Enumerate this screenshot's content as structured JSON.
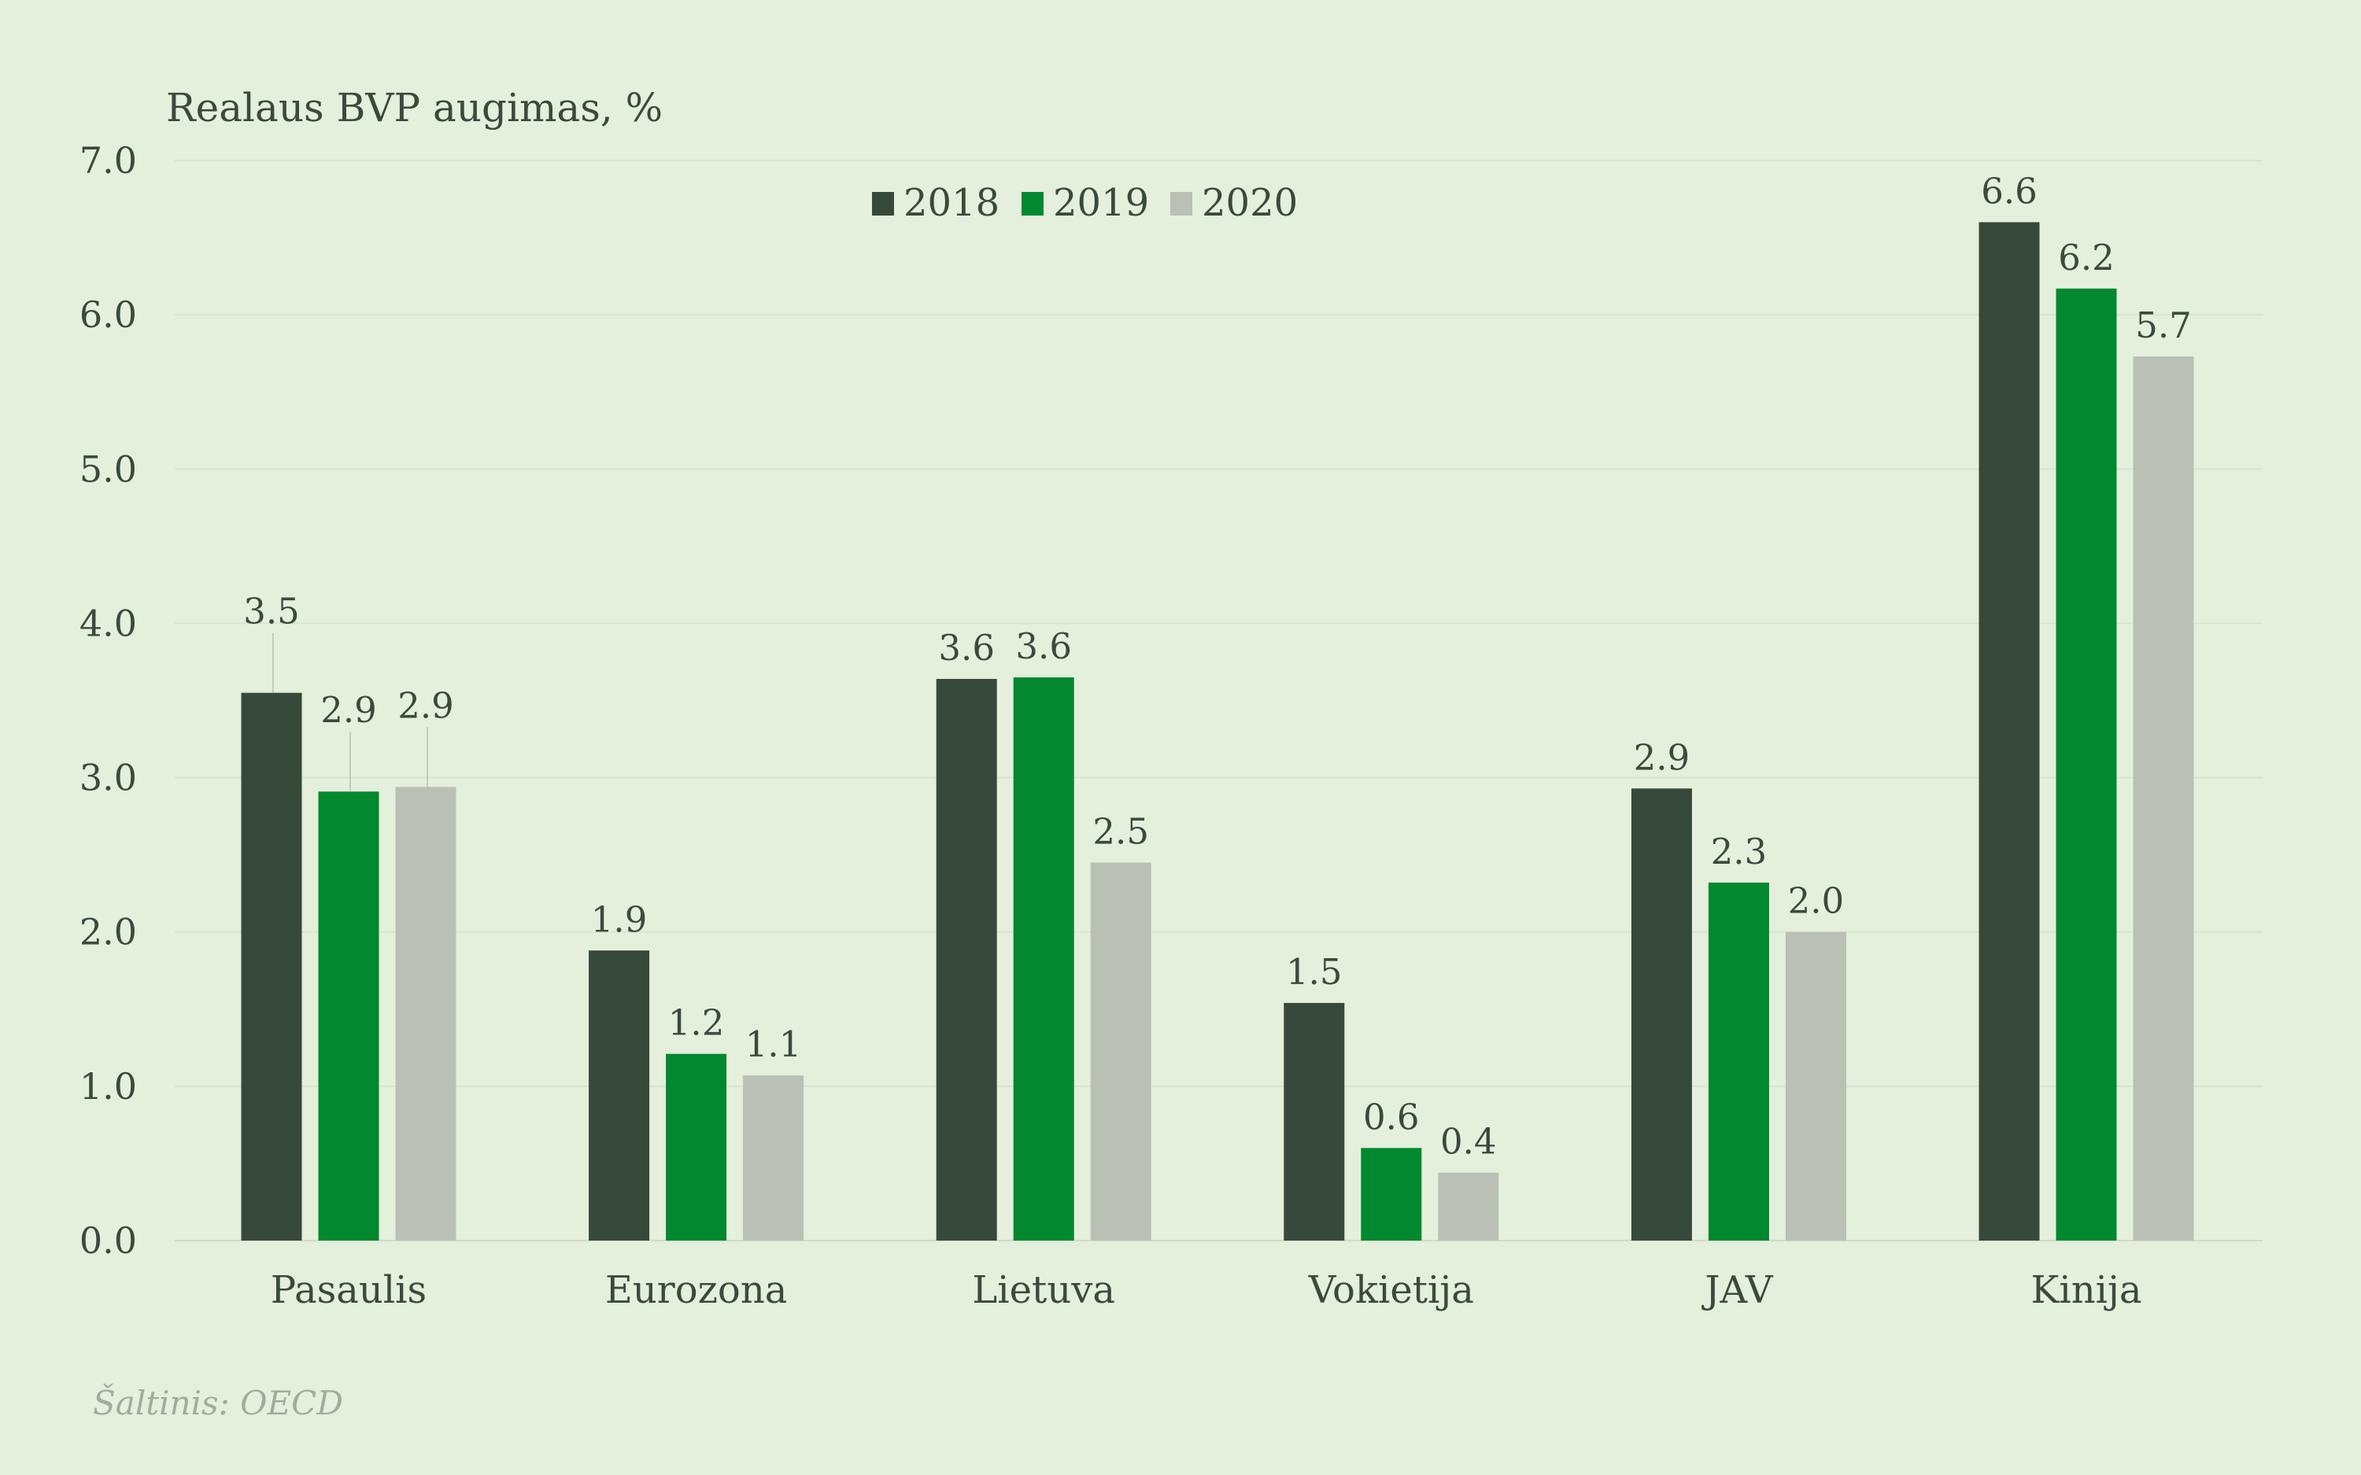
{
  "colors": {
    "background": "#e4efdc",
    "text": "#3a4a3d",
    "source_text": "#a3ab9f",
    "series_2018": "#37493b",
    "series_2019": "#02882e",
    "series_2020": "#bac0b5"
  },
  "chart_data": {
    "type": "bar",
    "ylabel": "Realaus BVP augimas, %",
    "ylim": [
      0,
      7
    ],
    "yticks": [
      "0.0",
      "1.0",
      "2.0",
      "3.0",
      "4.0",
      "5.0",
      "6.0",
      "7.0"
    ],
    "grid": true,
    "legend_position": "top-center",
    "categories": [
      "Pasaulis",
      "Eurozona",
      "Lietuva",
      "Vokietija",
      "JAV",
      "Kinija"
    ],
    "series": [
      {
        "name": "2018",
        "values": [
          3.55,
          1.88,
          3.64,
          1.54,
          2.93,
          6.6
        ],
        "labels": [
          "3.5",
          "1.9",
          "3.6",
          "1.5",
          "2.9",
          "6.6"
        ]
      },
      {
        "name": "2019",
        "values": [
          2.91,
          1.21,
          3.65,
          0.6,
          2.32,
          6.17
        ],
        "labels": [
          "2.9",
          "1.2",
          "3.6",
          "0.6",
          "2.3",
          "6.2"
        ]
      },
      {
        "name": "2020",
        "values": [
          2.94,
          1.07,
          2.45,
          0.44,
          2.0,
          5.73
        ],
        "labels": [
          "2.9",
          "1.1",
          "2.5",
          "0.4",
          "2.0",
          "5.7"
        ]
      }
    ],
    "source": "Šaltinis: OECD"
  }
}
